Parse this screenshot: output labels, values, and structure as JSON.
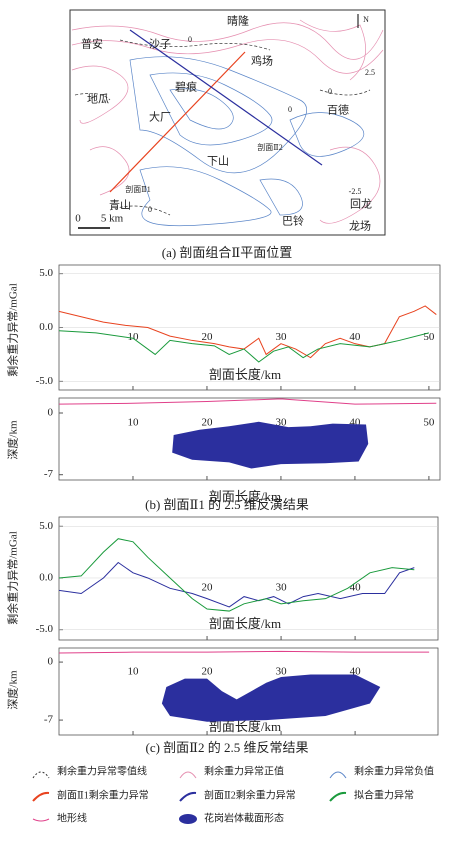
{
  "captions": [
    "(a) 剖面组合Ⅱ平面位置",
    "(b) 剖面Ⅱ1 的 2.5 维反演结果",
    "(c) 剖面Ⅱ2 的 2.5 维反常结果"
  ],
  "map": {
    "labels": [
      "晴隆",
      "普安",
      "沙子",
      "鸡场",
      "碧痕",
      "地瓜",
      "大厂",
      "百德",
      "下山",
      "剖面Ⅱ2",
      "剖面Ⅱ1",
      "青山",
      "巴铃",
      "回龙",
      "龙场",
      "N",
      "2.5",
      "-2.5",
      "0",
      "0",
      "0",
      "0"
    ],
    "scale": [
      "0",
      "5 km"
    ]
  },
  "axis_labels": {
    "gravity": "剩余重力异常/mGal",
    "depth": "深度/km",
    "distance": "剖面长度/km"
  },
  "legend": [
    "剩余重力异常零值线",
    "剩余重力异常正值",
    "剩余重力异常负值",
    "剖面Ⅱ1剩余重力异常",
    "剖面Ⅱ2剩余重力异常",
    "拟合重力异常",
    "地形线",
    "花岗岩体截面形态"
  ],
  "chart_data": [
    {
      "type": "line",
      "xlim": [
        0,
        51.5
      ],
      "ylim": [
        -5.8,
        5.8
      ],
      "xticks": [
        10,
        20,
        30,
        40,
        50
      ],
      "yticks": [
        {
          "value": 5,
          "label": "5.0"
        },
        {
          "value": 0,
          "label": "0.0"
        },
        {
          "value": -5,
          "label": "-5.0"
        }
      ],
      "series": [
        {
          "color": "#e8431f",
          "x": [
            0,
            3,
            6,
            9,
            12,
            15,
            18,
            21,
            23,
            25,
            27,
            28,
            30,
            32,
            34,
            36,
            38,
            40,
            42,
            44,
            46,
            48,
            49.5,
            51
          ],
          "values": [
            1.5,
            1.0,
            0.5,
            0.2,
            0.0,
            -0.8,
            -1.2,
            -1.5,
            -1.8,
            -2.0,
            -1.0,
            -2.5,
            -1.5,
            -2.0,
            -2.8,
            -1.5,
            -1.0,
            -1.5,
            -1.8,
            -1.5,
            1.0,
            1.5,
            2.0,
            1.2
          ]
        },
        {
          "color": "#1a9a3c",
          "x": [
            0,
            5,
            10,
            13,
            15,
            18,
            21,
            23,
            25,
            27,
            29,
            31,
            33,
            35,
            38,
            42,
            46,
            50
          ],
          "values": [
            -0.3,
            -0.5,
            -1.0,
            -2.5,
            -1.2,
            -1.5,
            -1.7,
            -2.5,
            -2.0,
            -3.2,
            -2.2,
            -1.8,
            -2.8,
            -2.0,
            -1.5,
            -1.8,
            -1.2,
            -0.5
          ]
        }
      ]
    },
    {
      "type": "section",
      "xlim": [
        0,
        51.5
      ],
      "ylim": [
        -7.6,
        1.7
      ],
      "xticks": [
        10,
        20,
        30,
        40,
        50
      ],
      "yticks": [
        0,
        -7
      ],
      "series": [
        {
          "color": "#e0408a",
          "x": [
            0,
            10,
            20,
            30,
            40,
            51
          ],
          "values": [
            1.0,
            1.1,
            1.3,
            1.6,
            1.0,
            1.1
          ]
        }
      ],
      "body": {
        "color": "#2b2f9e",
        "x": [
          15.5,
          19,
          23,
          27,
          31,
          34,
          37,
          41.5,
          41.8,
          40.5,
          36,
          30,
          26,
          23,
          18,
          15.3
        ],
        "y": [
          -2.5,
          -1.9,
          -1.5,
          -1.0,
          -1.6,
          -1.5,
          -1.2,
          -1.3,
          -3.5,
          -5.5,
          -5.7,
          -5.8,
          -6.3,
          -5.6,
          -5.3,
          -4.5
        ]
      }
    },
    {
      "type": "line",
      "xlim": [
        0,
        51.2
      ],
      "ylim": [
        -6.0,
        5.9
      ],
      "xticks": [
        20,
        30,
        40
      ],
      "yticks": [
        {
          "value": 5,
          "label": "5.0"
        },
        {
          "value": 0,
          "label": "0.0"
        },
        {
          "value": -5,
          "label": "-5.0"
        }
      ],
      "series": [
        {
          "color": "#2b2f9e",
          "x": [
            0,
            3,
            6,
            8,
            10,
            12,
            15,
            18,
            20,
            23,
            25,
            27,
            29,
            31,
            33,
            35,
            38,
            41,
            44,
            46,
            48
          ],
          "values": [
            -1.2,
            -1.5,
            0,
            1.5,
            0.5,
            0,
            -1,
            -1.5,
            -2.0,
            -2.8,
            -1.8,
            -2.2,
            -1.8,
            -2.5,
            -1.8,
            -1.5,
            -2.0,
            -1.5,
            -1.5,
            0.5,
            1.0
          ]
        },
        {
          "color": "#1a9a3c",
          "x": [
            0,
            3,
            6,
            8,
            10,
            12,
            15,
            18,
            20,
            23,
            25,
            28,
            30,
            33,
            36,
            39,
            42,
            45,
            48
          ],
          "values": [
            0,
            0.2,
            2.5,
            3.8,
            3.5,
            2.0,
            0,
            -2.0,
            -3.0,
            -3.2,
            -2.5,
            -2.0,
            -2.5,
            -2.2,
            -2.0,
            -1.0,
            0.5,
            1.0,
            0.8
          ]
        }
      ]
    },
    {
      "type": "section",
      "xlim": [
        0,
        51.2
      ],
      "ylim": [
        -8.8,
        1.7
      ],
      "xticks": [
        10,
        20,
        30,
        40
      ],
      "yticks": [
        0,
        -7
      ],
      "series": [
        {
          "color": "#e0408a",
          "x": [
            0,
            10,
            20,
            30,
            40,
            50
          ],
          "values": [
            1.1,
            1.2,
            1.2,
            1.3,
            1.2,
            1.2
          ]
        }
      ],
      "body": {
        "color": "#2b2f9e",
        "x": [
          14.5,
          17,
          20,
          22,
          24,
          26,
          28,
          30,
          34,
          40,
          43.4,
          42,
          36,
          28,
          20,
          15,
          13.9
        ],
        "y": [
          -3.0,
          -2.0,
          -2.0,
          -3.5,
          -4.5,
          -3.5,
          -2.5,
          -1.8,
          -1.5,
          -1.5,
          -3.0,
          -5.0,
          -6.5,
          -7.0,
          -7.2,
          -6.5,
          -5
        ]
      }
    }
  ]
}
